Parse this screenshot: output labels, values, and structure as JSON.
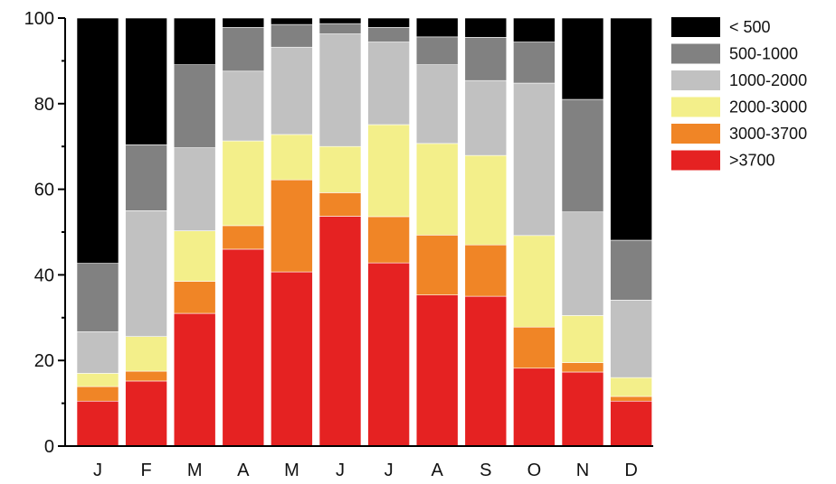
{
  "chart_data": {
    "type": "bar",
    "stacked": true,
    "categories": [
      "J",
      "F",
      "M",
      "A",
      "M",
      "J",
      "J",
      "A",
      "S",
      "O",
      "N",
      "D"
    ],
    "series": [
      {
        "name": ">3700",
        "color": "#e52222",
        "values": [
          10.5,
          15.2,
          31.0,
          46.0,
          40.7,
          53.7,
          42.8,
          35.3,
          35.0,
          18.2,
          17.3,
          10.5
        ]
      },
      {
        "name": "3000-3700",
        "color": "#f08526",
        "values": [
          3.4,
          2.3,
          7.5,
          5.5,
          21.5,
          5.5,
          10.8,
          14.0,
          12.0,
          9.6,
          2.2,
          1.1
        ]
      },
      {
        "name": "2000-3000",
        "color": "#f3ef8a",
        "values": [
          3.1,
          8.1,
          11.8,
          19.8,
          10.6,
          10.8,
          21.5,
          21.4,
          20.9,
          21.4,
          11.0,
          4.4
        ]
      },
      {
        "name": "1000-2000",
        "color": "#c1c1c1",
        "values": [
          9.7,
          29.4,
          19.4,
          16.3,
          20.4,
          26.3,
          19.3,
          18.4,
          17.5,
          35.6,
          24.2,
          18.1
        ]
      },
      {
        "name": "500-1000",
        "color": "#818181",
        "values": [
          16.0,
          15.4,
          19.4,
          10.2,
          5.3,
          2.4,
          3.4,
          6.5,
          10.1,
          9.6,
          26.3,
          14.0
        ]
      },
      {
        "name": "< 500",
        "color": "#000000",
        "values": [
          57.3,
          29.6,
          10.9,
          2.2,
          1.5,
          1.3,
          2.2,
          4.4,
          4.5,
          5.6,
          19.0,
          51.9
        ]
      }
    ],
    "ylim": [
      0,
      100
    ],
    "yticks": [
      "0",
      "20",
      "40",
      "60",
      "80",
      "100"
    ],
    "legend_order": [
      "< 500",
      "500-1000",
      "1000-2000",
      "2000-3000",
      "3000-3700",
      ">3700"
    ],
    "legend_position": "right",
    "grid": false,
    "title": "",
    "xlabel": "",
    "ylabel": ""
  }
}
